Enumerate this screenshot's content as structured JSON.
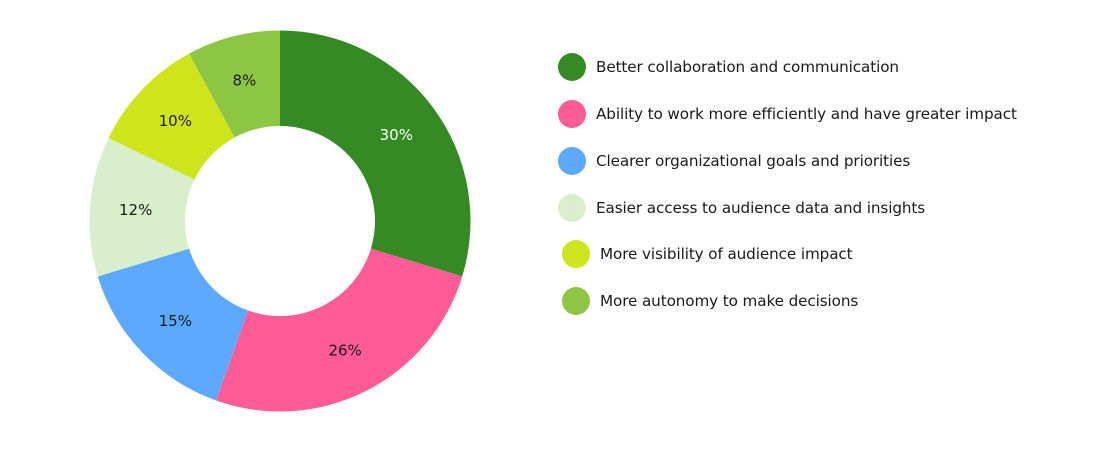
{
  "chart_data": {
    "type": "pie",
    "variant": "donut",
    "title": "",
    "categories": [
      "Better collaboration and communication",
      "Ability to work more efficiently and have greater impact",
      "Clearer organizational goals and priorities",
      "Easier access to audience data and insights",
      "More visibility of audience impact",
      "More autonomy to make decisions"
    ],
    "values": [
      30,
      26,
      15,
      12,
      10,
      8
    ],
    "labels": [
      "30%",
      "26%",
      "15%",
      "12%",
      "10%",
      "8%"
    ],
    "colors": [
      "#368A23",
      "#FF5C97",
      "#5DA9FF",
      "#D9EFCC",
      "#CDE51A",
      "#8DC643"
    ],
    "label_colors": [
      "#ffffff",
      "#1a1a1a",
      "#1a1a1a",
      "#1a1a1a",
      "#1a1a1a",
      "#1a1a1a"
    ],
    "legend_position": "right",
    "start_angle": "12 o'clock, clockwise"
  },
  "legend": {
    "items": [
      {
        "label": "Better collaboration and communication",
        "color": "#368A23"
      },
      {
        "label": "Ability to work more efficiently and have greater impact",
        "color": "#FF5C97"
      },
      {
        "label": "Clearer organizational goals and priorities",
        "color": "#5DA9FF"
      },
      {
        "label": "Easier access to audience data and insights",
        "color": "#D9EFCC"
      },
      {
        "label": "More visibility of audience impact",
        "color": "#CDE51A"
      },
      {
        "label": "More autonomy to make decisions",
        "color": "#8DC643"
      }
    ]
  }
}
